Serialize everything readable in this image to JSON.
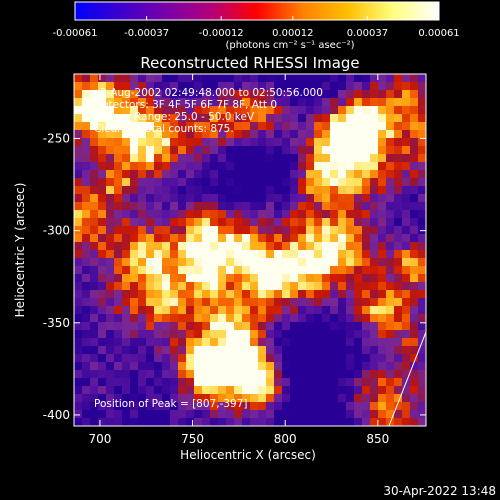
{
  "colorbar": {
    "tick_labels": [
      "-0.00061",
      "-0.00037",
      "-0.00012",
      "0.00012",
      "0.00037",
      "0.00061"
    ],
    "tick_values": [
      -0.00061,
      -0.00037,
      -0.00012,
      0.00012,
      0.00037,
      0.00061
    ],
    "units_label": "(photons cm⁻² s⁻¹ asec⁻²)",
    "colors": [
      "#0000ff",
      "#3c00cc",
      "#7800aa",
      "#b40078",
      "#ff0000",
      "#ff8000",
      "#ffc000",
      "#ffff80",
      "#ffffff"
    ]
  },
  "chart_data": {
    "type": "heatmap",
    "title": "Reconstructed RHESSI Image",
    "xlabel": "Heliocentric X (arcsec)",
    "ylabel": "Heliocentric Y (arcsec)",
    "xlim": [
      686,
      876
    ],
    "ylim": [
      -406,
      -215
    ],
    "x_ticks": [
      700,
      750,
      800,
      850
    ],
    "y_ticks": [
      -250,
      -300,
      -350,
      -400
    ],
    "annotations": [
      "2-Aug-2002 02:49:48.000 to 02:50:56.000",
      "Detectors: 3F 4F 5F 6F 7F 8F, Att 0",
      "Energy Range: 25.0 - 50.0 keV",
      "Clean     Total counts: 875.",
      "Position of Peak = [807,-397]"
    ],
    "limb_line": [
      [
        856,
        -406
      ],
      [
        876,
        -355
      ]
    ],
    "value_range": [
      -0.00061,
      0.00061
    ]
  },
  "timestamp": "30-Apr-2022 13:48"
}
